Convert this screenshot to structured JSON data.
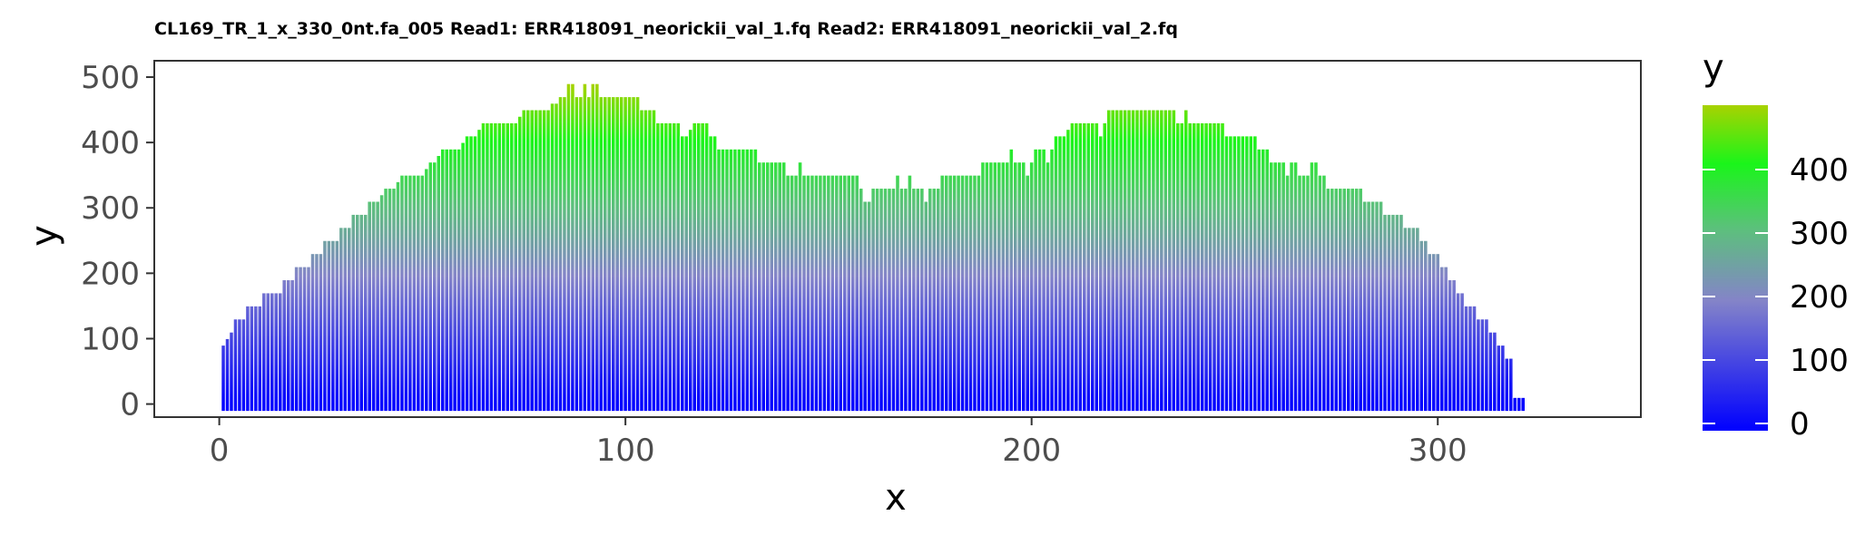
{
  "chart_data": {
    "type": "bar",
    "title": "CL169_TR_1_x_330_0nt.fa_005 Read1: ERR418091_neorickii_val_1.fq Read2: ERR418091_neorickii_val_2.fq",
    "xlabel": "x",
    "ylabel": "y",
    "xlim": [
      -16,
      350
    ],
    "ylim": [
      -20,
      525
    ],
    "x_ticks": [
      0,
      100,
      200,
      300
    ],
    "y_ticks": [
      0,
      100,
      200,
      300,
      400,
      500
    ],
    "grid": false,
    "x_start": 1,
    "bar_step": 1,
    "values": [
      90,
      100,
      110,
      130,
      130,
      130,
      150,
      150,
      150,
      150,
      170,
      170,
      170,
      170,
      170,
      190,
      190,
      190,
      210,
      210,
      210,
      210,
      230,
      230,
      230,
      250,
      250,
      250,
      250,
      270,
      270,
      270,
      290,
      290,
      290,
      290,
      310,
      310,
      310,
      320,
      330,
      330,
      330,
      340,
      350,
      350,
      350,
      350,
      350,
      350,
      360,
      370,
      370,
      380,
      390,
      390,
      390,
      390,
      390,
      400,
      410,
      410,
      410,
      420,
      430,
      430,
      430,
      430,
      430,
      430,
      430,
      430,
      430,
      440,
      450,
      450,
      450,
      450,
      450,
      450,
      450,
      460,
      460,
      470,
      470,
      490,
      490,
      470,
      470,
      490,
      470,
      490,
      490,
      470,
      470,
      470,
      470,
      470,
      470,
      470,
      470,
      470,
      470,
      450,
      450,
      450,
      450,
      430,
      430,
      430,
      430,
      430,
      430,
      410,
      410,
      420,
      430,
      430,
      430,
      430,
      410,
      410,
      390,
      390,
      390,
      390,
      390,
      390,
      390,
      390,
      390,
      390,
      370,
      370,
      370,
      370,
      370,
      370,
      370,
      350,
      350,
      350,
      370,
      350,
      350,
      350,
      350,
      350,
      350,
      350,
      350,
      350,
      350,
      350,
      350,
      350,
      350,
      330,
      310,
      310,
      330,
      330,
      330,
      330,
      330,
      330,
      350,
      330,
      330,
      350,
      330,
      330,
      330,
      310,
      330,
      330,
      330,
      350,
      350,
      350,
      350,
      350,
      350,
      350,
      350,
      350,
      350,
      370,
      370,
      370,
      370,
      370,
      370,
      370,
      390,
      370,
      370,
      370,
      350,
      370,
      390,
      390,
      390,
      370,
      390,
      410,
      410,
      410,
      420,
      430,
      430,
      430,
      430,
      430,
      430,
      430,
      410,
      430,
      450,
      450,
      450,
      450,
      450,
      450,
      450,
      450,
      450,
      450,
      450,
      450,
      450,
      450,
      450,
      450,
      450,
      430,
      430,
      450,
      430,
      430,
      430,
      430,
      430,
      430,
      430,
      430,
      430,
      410,
      410,
      410,
      410,
      410,
      410,
      410,
      410,
      390,
      390,
      390,
      370,
      370,
      370,
      370,
      350,
      370,
      370,
      350,
      350,
      350,
      370,
      370,
      350,
      350,
      330,
      330,
      330,
      330,
      330,
      330,
      330,
      330,
      330,
      310,
      310,
      310,
      310,
      310,
      290,
      290,
      290,
      290,
      290,
      270,
      270,
      270,
      270,
      250,
      250,
      230,
      230,
      230,
      210,
      210,
      190,
      190,
      170,
      170,
      150,
      150,
      150,
      130,
      130,
      130,
      110,
      110,
      90,
      90,
      70,
      70,
      10,
      10,
      10
    ],
    "legend": {
      "title": "y",
      "ticks": [
        0,
        100,
        200,
        300,
        400
      ],
      "range": [
        0,
        490
      ],
      "placement": "right",
      "colors": [
        {
          "stop": 0.0,
          "color": "#0000ff"
        },
        {
          "stop": 0.4,
          "color": "#8484c8"
        },
        {
          "stop": 0.62,
          "color": "#5cc07c"
        },
        {
          "stop": 0.82,
          "color": "#1af51a"
        },
        {
          "stop": 1.0,
          "color": "#a8d200"
        }
      ]
    }
  }
}
